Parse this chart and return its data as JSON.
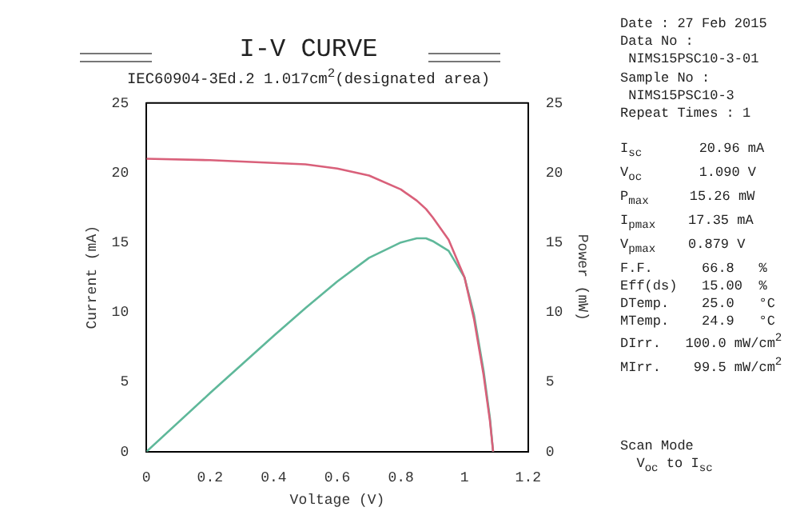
{
  "chart_data": {
    "type": "line",
    "title": "I-V CURVE",
    "subtitle": "IEC60904-3Ed.2 1.017cm$^{2}$(designated area)",
    "xlabel": "Voltage (V)",
    "ylabel": "Current (mA)",
    "y2label": "Power (mW)",
    "x": [
      0,
      0.2,
      0.4,
      0.5,
      0.6,
      0.7,
      0.8,
      0.85,
      0.879,
      0.9,
      0.95,
      1.0,
      1.03,
      1.06,
      1.08,
      1.09
    ],
    "series": [
      {
        "color": "#d9607a",
        "values": [
          21.0,
          20.9,
          20.7,
          20.6,
          20.3,
          19.8,
          18.8,
          18.0,
          17.4,
          16.8,
          15.2,
          12.5,
          9.5,
          5.5,
          2.2,
          0
        ]
      },
      {
        "color": "#5fb89a",
        "axis": "y2",
        "values": [
          0,
          4.2,
          8.3,
          10.3,
          12.2,
          13.9,
          15.0,
          15.3,
          15.3,
          15.1,
          14.4,
          12.5,
          9.8,
          5.8,
          2.4,
          0
        ]
      }
    ],
    "xlim": [
      0,
      1.2
    ],
    "xticks": [
      0,
      0.2,
      0.4,
      0.6,
      0.8,
      1,
      1.2
    ],
    "ylim": [
      0,
      25
    ],
    "yticks": [
      0,
      5,
      10,
      15,
      20,
      25
    ],
    "y2lim": [
      0,
      25
    ],
    "y2ticks": [
      0,
      5,
      10,
      15,
      20,
      25
    ],
    "annotations": [
      "Date : 27 Feb 2015",
      "Data No :",
      " NIMS15PSC10-3-01",
      "Sample No :",
      " NIMS15PSC10-3",
      "Repeat Times : 1",
      "I$_{sc}$       20.96 mA",
      "V$_{oc}$       1.090 V",
      "P$_{max}$     15.26 mW",
      "I$_{pmax}$    17.35 mA",
      "V$_{pmax}$    0.879 V",
      "F.F.      66.8   %",
      "Eff(ds)   15.00  %",
      "DTemp.    25.0   °C",
      "MTemp.    24.9   °C",
      "DIrr.   100.0 mW/cm$^{2}$",
      "MIrr.    99.5 mW/cm$^{2}$",
      "Scan Mode",
      "  V$_{oc}$ to I$_{sc}$"
    ]
  }
}
